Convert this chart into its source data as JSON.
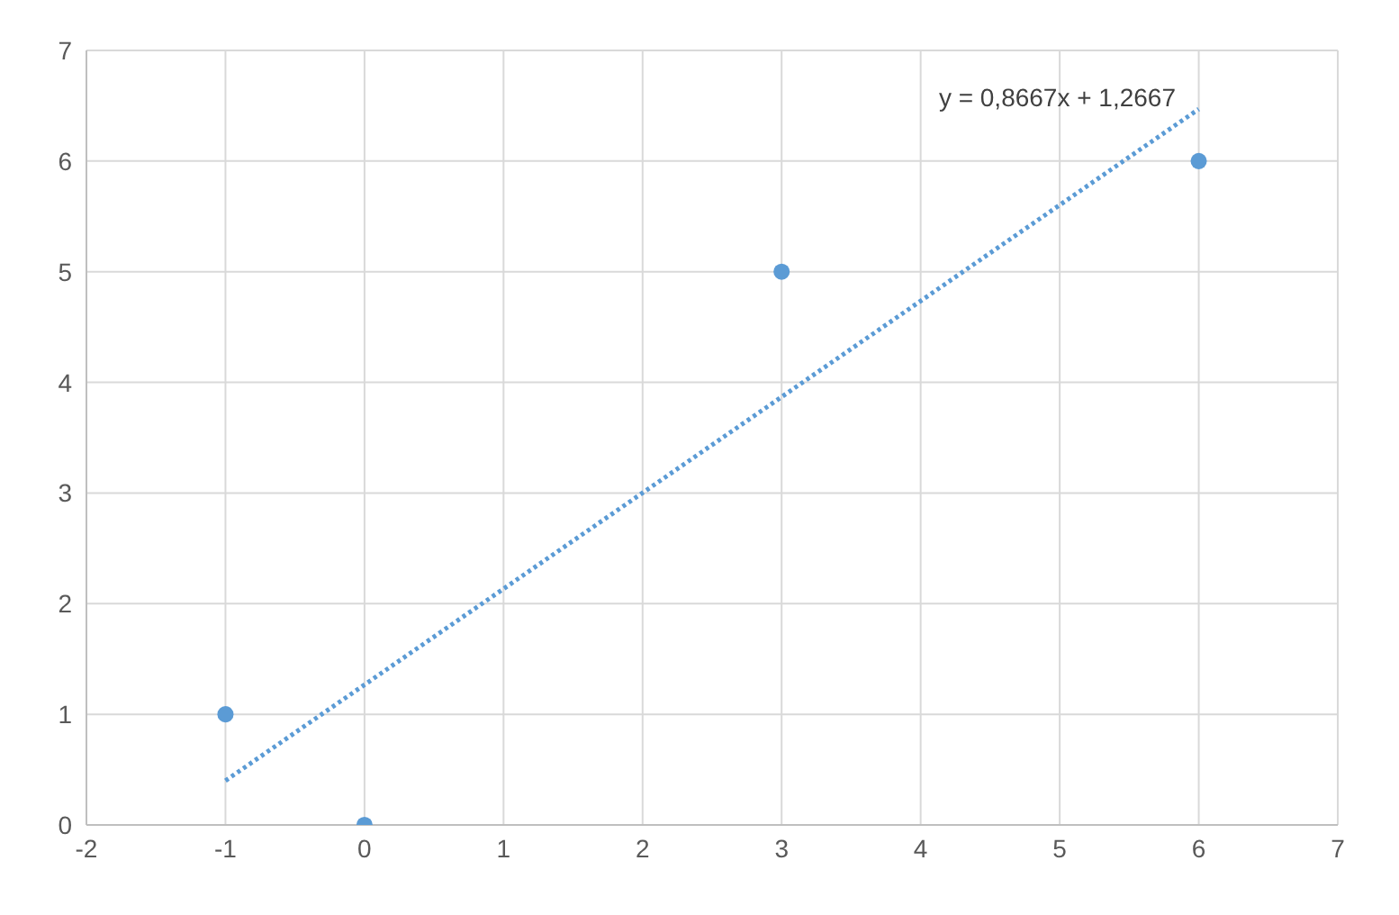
{
  "chart_data": {
    "type": "scatter",
    "xlim": [
      -2,
      7
    ],
    "xticks": [
      -2,
      -1,
      0,
      1,
      2,
      3,
      4,
      5,
      6,
      7
    ],
    "ylim": [
      0,
      7
    ],
    "yticks": [
      0,
      1,
      2,
      3,
      4,
      5,
      6,
      7
    ],
    "grid": true,
    "series": [
      {
        "color": "#5b9bd5",
        "marker": "circle",
        "x": [
          -1,
          0,
          3,
          6
        ],
        "values": [
          1,
          0,
          5,
          6
        ]
      },
      {
        "type": "line",
        "color": "#5b9bd5",
        "line_style": "dotted",
        "marker": "none",
        "x": [
          -1,
          6
        ],
        "values": [
          0.4,
          6.47
        ]
      }
    ],
    "annotations": [
      "y = 0,8667x + 1,2667"
    ]
  }
}
